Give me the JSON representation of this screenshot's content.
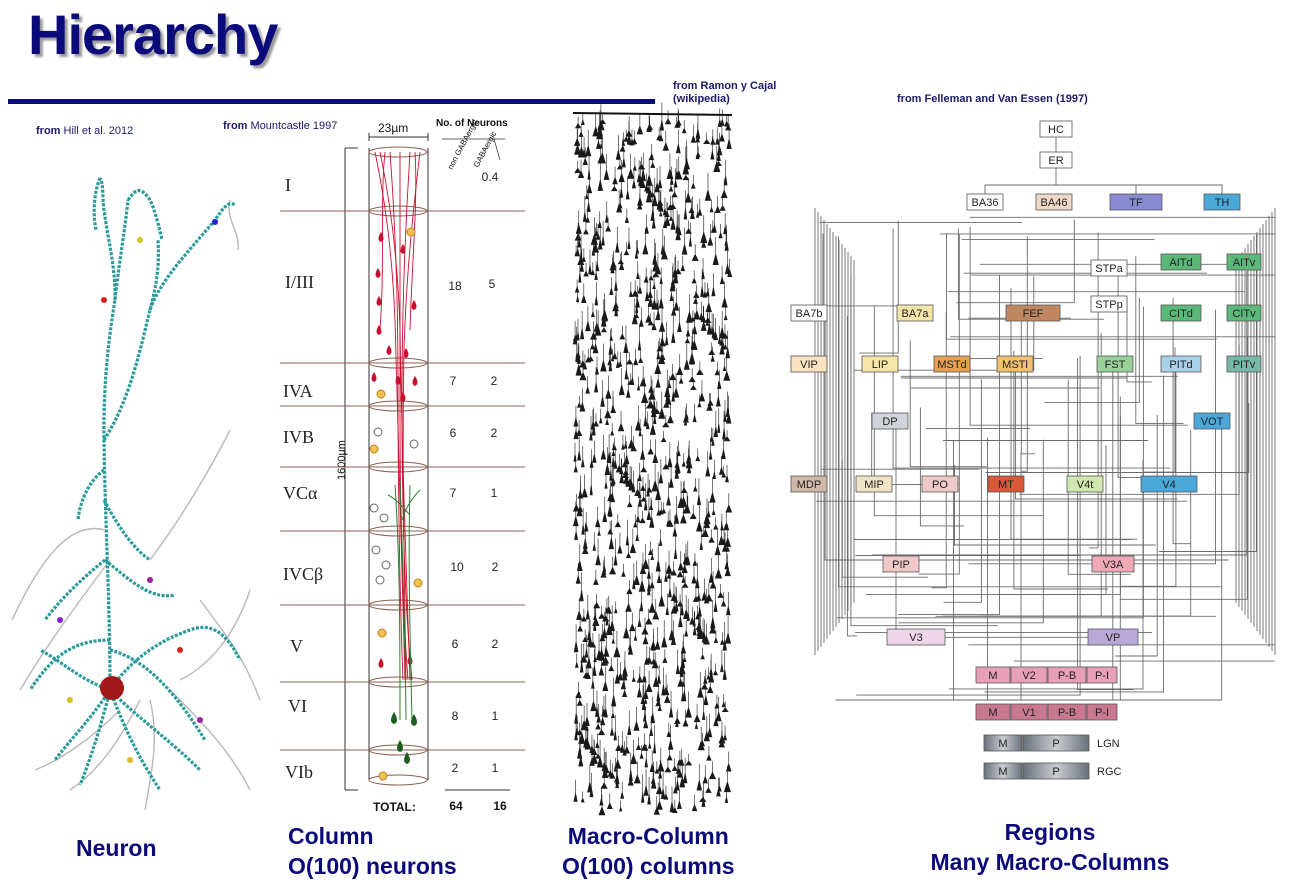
{
  "title": "Hierarchy",
  "sources": {
    "neuron_from": "from",
    "neuron_ref": "Hill et al. 2012",
    "column_from": "from",
    "column_ref": "Mountcastle 1997",
    "macro_line1": "from Ramon y Cajal",
    "macro_line2": "(wikipedia)",
    "regions_ref": "from Felleman and Van Essen (1997)"
  },
  "captions": {
    "neuron": "Neuron",
    "column_1": "Column",
    "column_2": "O(100) neurons",
    "macro_1": "Macro-Column",
    "macro_2": "O(100) columns",
    "regions_1": "Regions",
    "regions_2": "Many Macro-Columns"
  },
  "column_table": {
    "width_label": "23µm",
    "height_label": "1600µm",
    "header": "No. of Neurons",
    "col_non": "non GABAergic",
    "col_gaba": "GABAergic",
    "layers": [
      {
        "layer": "I",
        "non": "",
        "gaba": "0.4"
      },
      {
        "layer": "I/III",
        "non": "18",
        "gaba": "5"
      },
      {
        "layer": "IVA",
        "non": "7",
        "gaba": "2"
      },
      {
        "layer": "IVB",
        "non": "6",
        "gaba": "2"
      },
      {
        "layer": "VCα",
        "non": "7",
        "gaba": "1"
      },
      {
        "layer": "IVCβ",
        "non": "10",
        "gaba": "2"
      },
      {
        "layer": "V",
        "non": "6",
        "gaba": "2"
      },
      {
        "layer": "VI",
        "non": "8",
        "gaba": "1"
      },
      {
        "layer": "VIb",
        "non": "2",
        "gaba": "1"
      }
    ],
    "total_label": "TOTAL:",
    "total_non": "64",
    "total_gaba": "16"
  },
  "regions": {
    "HC": "HC",
    "ER": "ER",
    "BA36": "BA36",
    "BA46": "BA46",
    "TF": "TF",
    "TH": "TH",
    "STPa": "STPa",
    "AITd": "AITd",
    "AITv": "AITv",
    "BA7b": "BA7b",
    "BA7a": "BA7a",
    "FEF": "FEF",
    "STPp": "STPp",
    "CITd": "CITd",
    "CITv": "CITv",
    "VIP": "VIP",
    "LIP": "LIP",
    "MSTd": "MSTd",
    "MSTl": "MSTl",
    "FST": "FST",
    "PITd": "PITd",
    "PITv": "PITv",
    "DP": "DP",
    "VOT": "VOT",
    "MDP": "MDP",
    "MIP": "MIP",
    "PO": "PO",
    "MT": "MT",
    "V4t": "V4t",
    "V4": "V4",
    "PIP": "PIP",
    "V3A": "V3A",
    "V3": "V3",
    "VP": "VP",
    "M": "M",
    "V2": "V2",
    "PB": "P-B",
    "PI": "P-I",
    "V1": "V1",
    "P": "P",
    "LGN": "LGN",
    "RGC": "RGC"
  },
  "colors": {
    "title": "#0a0a7a",
    "axon_red": "#c8102e",
    "dendrite_green": "#2e7d32",
    "neuron_teal": "#1aa3a3",
    "box_orange": "#e8a050",
    "box_blue": "#4aa8d8",
    "box_green": "#5cb878",
    "box_purple": "#8a8ad0",
    "box_red": "#d85838",
    "box_pink": "#e8a0b8",
    "box_grey": "#9aa0a8"
  }
}
